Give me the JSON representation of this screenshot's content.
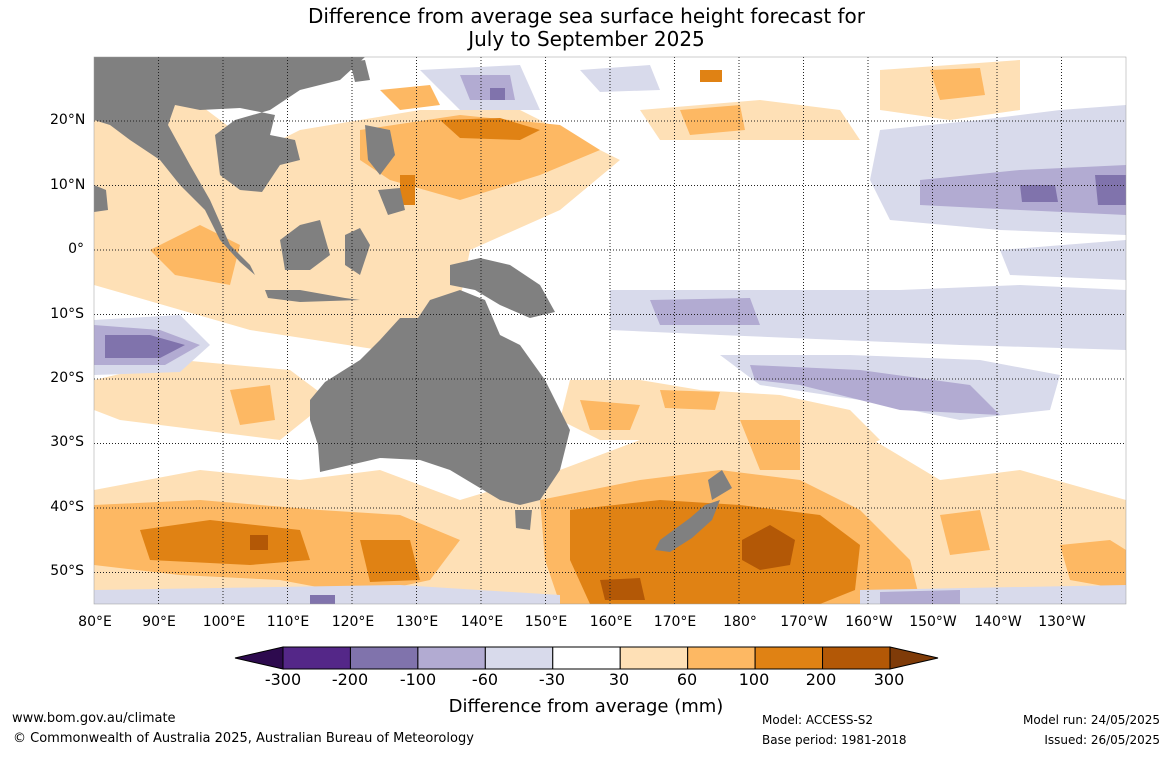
{
  "title_line1": "Difference from average sea surface height forecast for",
  "title_line2": "July to September 2025",
  "map": {
    "latitude_labels": [
      "20°N",
      "10°N",
      "0°",
      "10°S",
      "20°S",
      "30°S",
      "40°S",
      "50°S"
    ],
    "longitude_labels": [
      "80°E",
      "90°E",
      "100°E",
      "110°E",
      "120°E",
      "130°E",
      "140°E",
      "150°E",
      "160°E",
      "170°E",
      "180°",
      "170°W",
      "160°W",
      "150°W",
      "140°W",
      "130°W"
    ],
    "land_color": "#808080",
    "gridlines": "dotted"
  },
  "legend": {
    "title": "Difference from average (mm)",
    "tick_labels": [
      "-300",
      "-200",
      "-100",
      "-60",
      "-30",
      "30",
      "60",
      "100",
      "200",
      "300"
    ],
    "colors": [
      "#2d0a4e",
      "#542788",
      "#8073ac",
      "#b2abd2",
      "#d8daeb",
      "#ffffff",
      "#fee0b6",
      "#fdb863",
      "#e08214",
      "#b35806",
      "#7f3b08"
    ]
  },
  "footer": {
    "website": "www.bom.gov.au/climate",
    "copyright": "© Commonwealth of Australia 2025, Australian Bureau of Meteorology",
    "model": "Model: ACCESS-S2",
    "base_period": "Base period: 1981-2018",
    "model_run": "Model run: 24/05/2025",
    "issued": "Issued: 26/05/2025"
  }
}
